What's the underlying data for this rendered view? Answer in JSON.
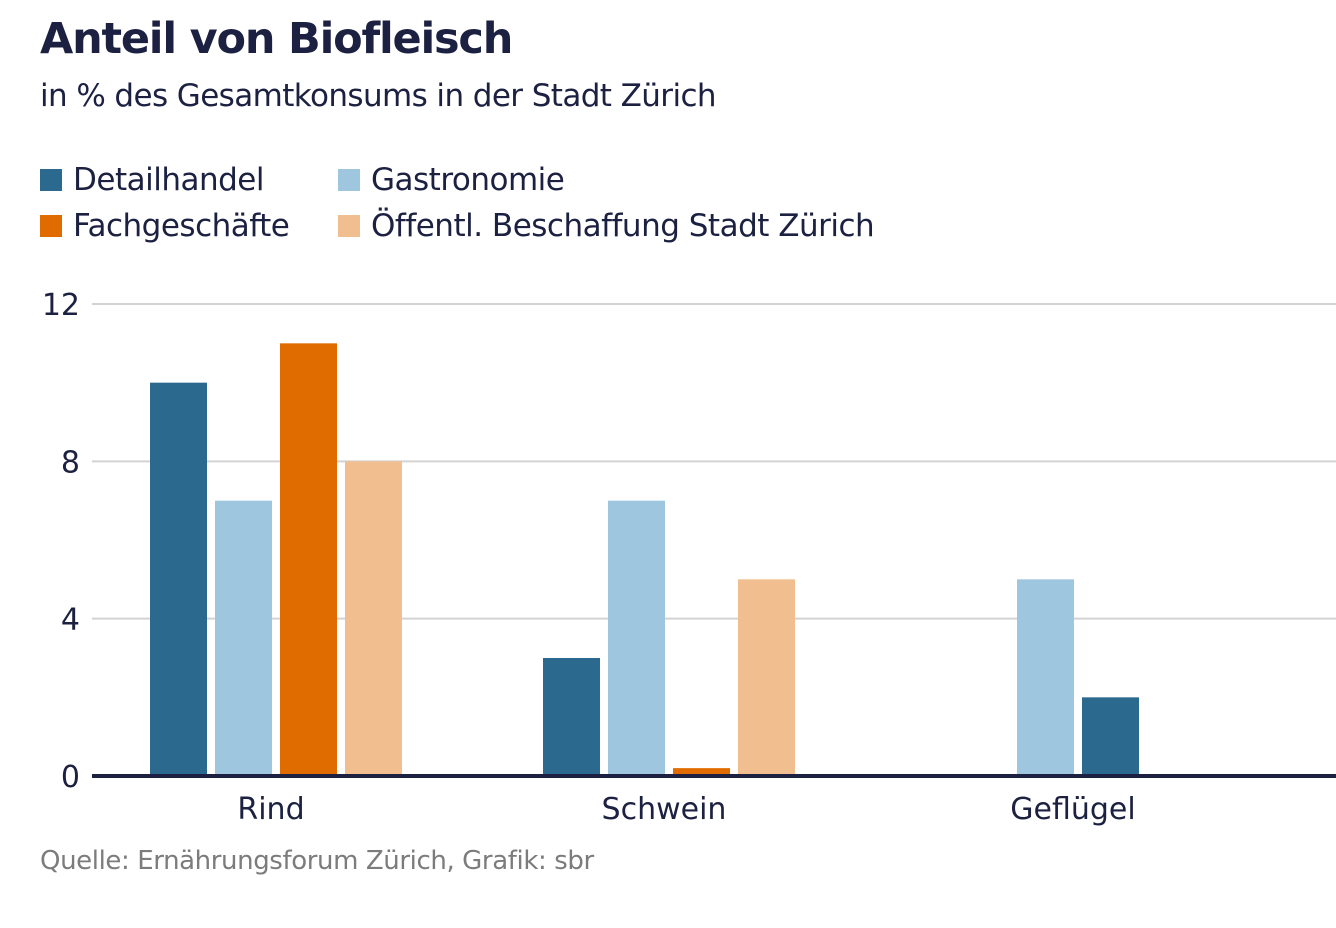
{
  "chart_data": {
    "type": "bar",
    "title": "Anteil von Biofleisch",
    "subtitle": "in % des Gesamtkonsums in der Stadt Zürich",
    "xlabel": "",
    "ylabel": "",
    "ylim": [
      0,
      12
    ],
    "yticks": [
      0,
      4,
      8,
      12
    ],
    "grid": true,
    "legend_position": "top-left",
    "categories": [
      "Rind",
      "Schwein",
      "Geflügel"
    ],
    "series": [
      {
        "name": "Detailhandel",
        "color": "#2b6a8e",
        "values": [
          10,
          3,
          2
        ]
      },
      {
        "name": "Gastronomie",
        "color": "#9ec6df",
        "values": [
          7,
          7,
          5
        ]
      },
      {
        "name": "Fachgeschäfte",
        "color": "#e06c00",
        "values": [
          11,
          0.2,
          null
        ]
      },
      {
        "name": "Öffentl. Beschaffung Stadt Zürich",
        "color": "#f0be8f",
        "values": [
          8,
          5,
          null
        ]
      }
    ],
    "bar_order": [
      [
        "Detailhandel",
        "Gastronomie",
        "Fachgeschäfte",
        "Öffentl. Beschaffung Stadt Zürich"
      ],
      [
        "Detailhandel",
        "Gastronomie",
        "Fachgeschäfte",
        "Öffentl. Beschaffung Stadt Zürich"
      ],
      [
        "Gastronomie",
        "Detailhandel"
      ]
    ],
    "source": "Quelle: Ernährungsforum Zürich, Grafik: sbr"
  }
}
